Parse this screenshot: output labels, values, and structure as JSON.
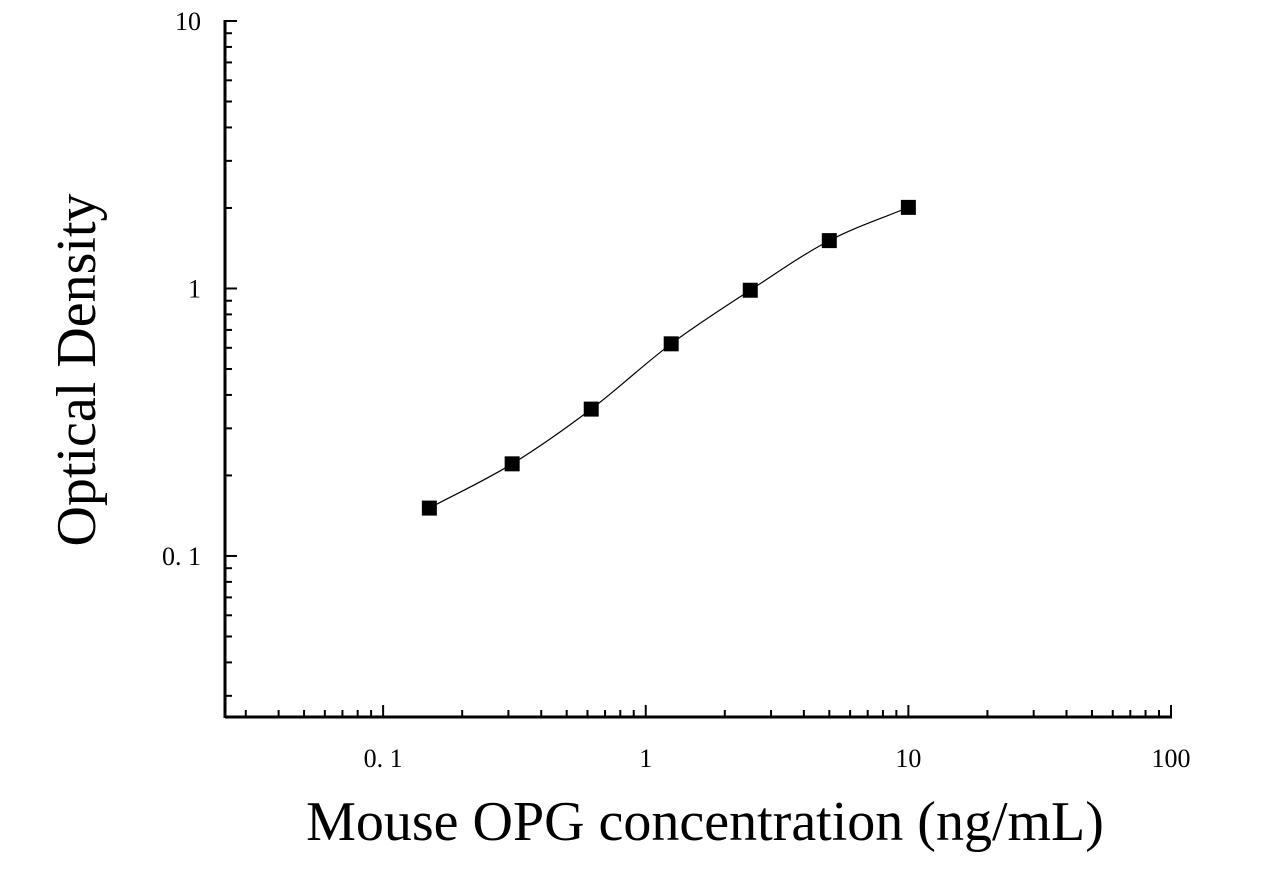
{
  "chart_data": {
    "type": "scatter",
    "title": "",
    "xlabel": "Mouse OPG concentration (ng/mL)",
    "ylabel": "Optical Density",
    "x_scale": "log",
    "y_scale": "log",
    "xlim": [
      0.025,
      100
    ],
    "ylim": [
      0.025,
      10
    ],
    "x_ticks": [
      {
        "value": 0.1,
        "label": "0. 1"
      },
      {
        "value": 1,
        "label": "1"
      },
      {
        "value": 10,
        "label": "10"
      },
      {
        "value": 100,
        "label": "100"
      }
    ],
    "y_ticks": [
      {
        "value": 0.1,
        "label": "0. 1"
      },
      {
        "value": 1,
        "label": "1"
      },
      {
        "value": 10,
        "label": "10"
      }
    ],
    "grid": false,
    "legend": "none",
    "marker": "square",
    "color": "#000000",
    "series": [
      {
        "x": [
          0.15,
          0.31,
          0.62,
          1.25,
          2.5,
          5,
          10
        ],
        "y": [
          0.151,
          0.221,
          0.354,
          0.621,
          0.985,
          1.51,
          2.01
        ],
        "fit_curve": true
      }
    ]
  }
}
